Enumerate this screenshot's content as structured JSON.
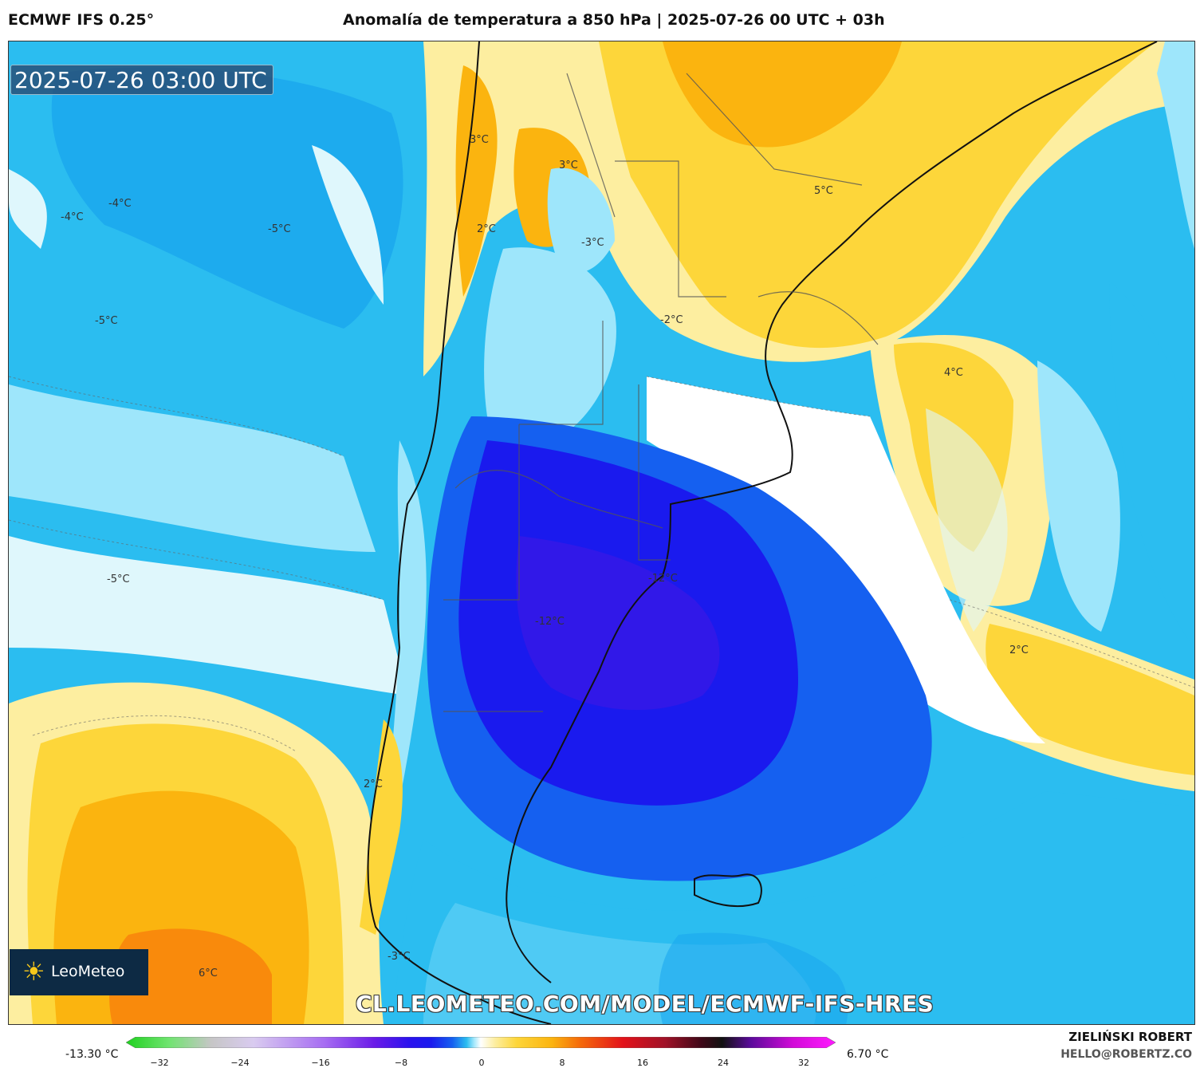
{
  "header": {
    "model": "ECMWF IFS 0.25°",
    "title": "Anomalía de temperatura a 850 hPa | 2025-07-26 00 UTC + 03h"
  },
  "map": {
    "timestamp": "2025-07-26 03:00 UTC",
    "watermark": "CL.LEOMETEO.COM/MODEL/ECMWF-IFS-HRES",
    "logo_text": "LeoMeteo",
    "labels": [
      {
        "text": "3°C"
      },
      {
        "text": "3°C"
      },
      {
        "text": "-4°C"
      },
      {
        "text": "-4°C"
      },
      {
        "text": "-5°C"
      },
      {
        "text": "5°C"
      },
      {
        "text": "2°C"
      },
      {
        "text": "-3°C"
      },
      {
        "text": "-5°C"
      },
      {
        "text": "-2°C"
      },
      {
        "text": "4°C"
      },
      {
        "text": "-12°C"
      },
      {
        "text": "-5°C"
      },
      {
        "text": "-12°C"
      },
      {
        "text": "2°C"
      },
      {
        "text": "2°C"
      },
      {
        "text": "-3°C"
      },
      {
        "text": "6°C"
      }
    ]
  },
  "legend": {
    "min_label": "-13.30 °C",
    "max_label": "6.70 °C",
    "ticks": [
      "−32",
      "−24",
      "−16",
      "−8",
      "0",
      "8",
      "16",
      "24",
      "32"
    ]
  },
  "credits": {
    "author": "ZIELIŃSKI ROBERT",
    "email": "HELLO@ROBERTZ.CO"
  },
  "colors": {
    "deep_blue": "#1a1aee",
    "blue": "#1560f0",
    "cyan": "#2bbdf0",
    "light_cyan": "#9ee6fb",
    "pale": "#dff7fc",
    "white": "#ffffff",
    "pale_yellow": "#fdeea0",
    "yellow": "#fdd63a",
    "orange": "#fbb40f",
    "dark_orange": "#f98a0c"
  }
}
